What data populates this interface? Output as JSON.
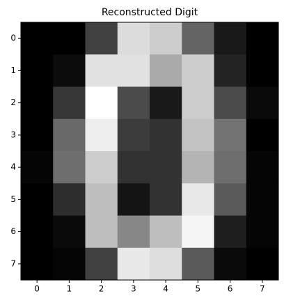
{
  "chart_data": {
    "type": "heatmap",
    "title": "Reconstructed Digit",
    "colormap": "gray",
    "clim": [
      0,
      255
    ],
    "z": [
      [
        0,
        0,
        65,
        220,
        205,
        100,
        25,
        0
      ],
      [
        0,
        12,
        225,
        225,
        170,
        205,
        35,
        0
      ],
      [
        0,
        55,
        255,
        75,
        25,
        205,
        75,
        10
      ],
      [
        0,
        105,
        238,
        60,
        50,
        195,
        115,
        0
      ],
      [
        5,
        110,
        205,
        50,
        50,
        180,
        110,
        5
      ],
      [
        0,
        45,
        190,
        20,
        50,
        232,
        90,
        5
      ],
      [
        0,
        10,
        190,
        135,
        190,
        245,
        30,
        5
      ],
      [
        0,
        5,
        65,
        232,
        222,
        90,
        10,
        0
      ]
    ],
    "xlim": [
      -0.5,
      7.5
    ],
    "ylim": [
      7.5,
      -0.5
    ],
    "xticks": [
      0,
      1,
      2,
      3,
      4,
      5,
      6,
      7
    ],
    "yticks": [
      0,
      1,
      2,
      3,
      4,
      5,
      6,
      7
    ]
  }
}
